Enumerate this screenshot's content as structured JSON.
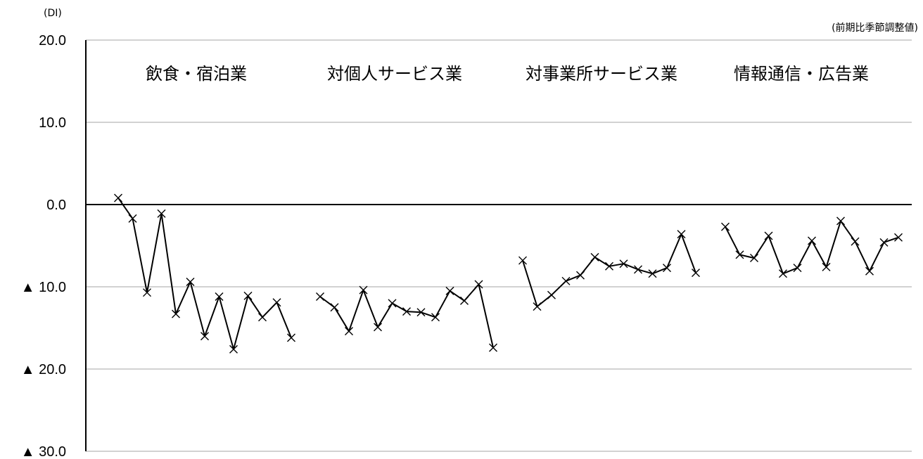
{
  "chart_data": {
    "type": "line",
    "unit_label": "(DI)",
    "note": "(前期比季節調整値)",
    "ylim": [
      -30,
      20
    ],
    "y_ticks": [
      20,
      10,
      0,
      -10,
      -20,
      -30
    ],
    "y_tick_labels": [
      "20.0",
      "10.0",
      "0.0",
      "▲ 10.0",
      "▲ 20.0",
      "▲ 30.0"
    ],
    "grid": true,
    "marker": "x",
    "panels": [
      {
        "title": "飲食・宿泊業",
        "values": [
          0.8,
          -1.7,
          -10.7,
          -1.1,
          -13.3,
          -9.4,
          -16.0,
          -11.2,
          -17.6,
          -11.1,
          -13.7,
          -11.9,
          -16.2
        ]
      },
      {
        "title": "対個人サービス業",
        "values": [
          -11.2,
          -12.5,
          -15.4,
          -10.4,
          -14.9,
          -12.0,
          -13.0,
          -13.1,
          -13.7,
          -10.5,
          -11.7,
          -9.7,
          -17.4
        ]
      },
      {
        "title": "対事業所サービス業",
        "values": [
          -6.8,
          -12.4,
          -11.0,
          -9.3,
          -8.6,
          -6.4,
          -7.5,
          -7.2,
          -7.9,
          -8.4,
          -7.7,
          -3.6,
          -8.3
        ]
      },
      {
        "title": "情報通信・広告業",
        "values": [
          -2.7,
          -6.1,
          -6.5,
          -3.8,
          -8.4,
          -7.7,
          -4.4,
          -7.6,
          -2.0,
          -4.5,
          -8.1,
          -4.6,
          -4.0
        ]
      }
    ]
  }
}
